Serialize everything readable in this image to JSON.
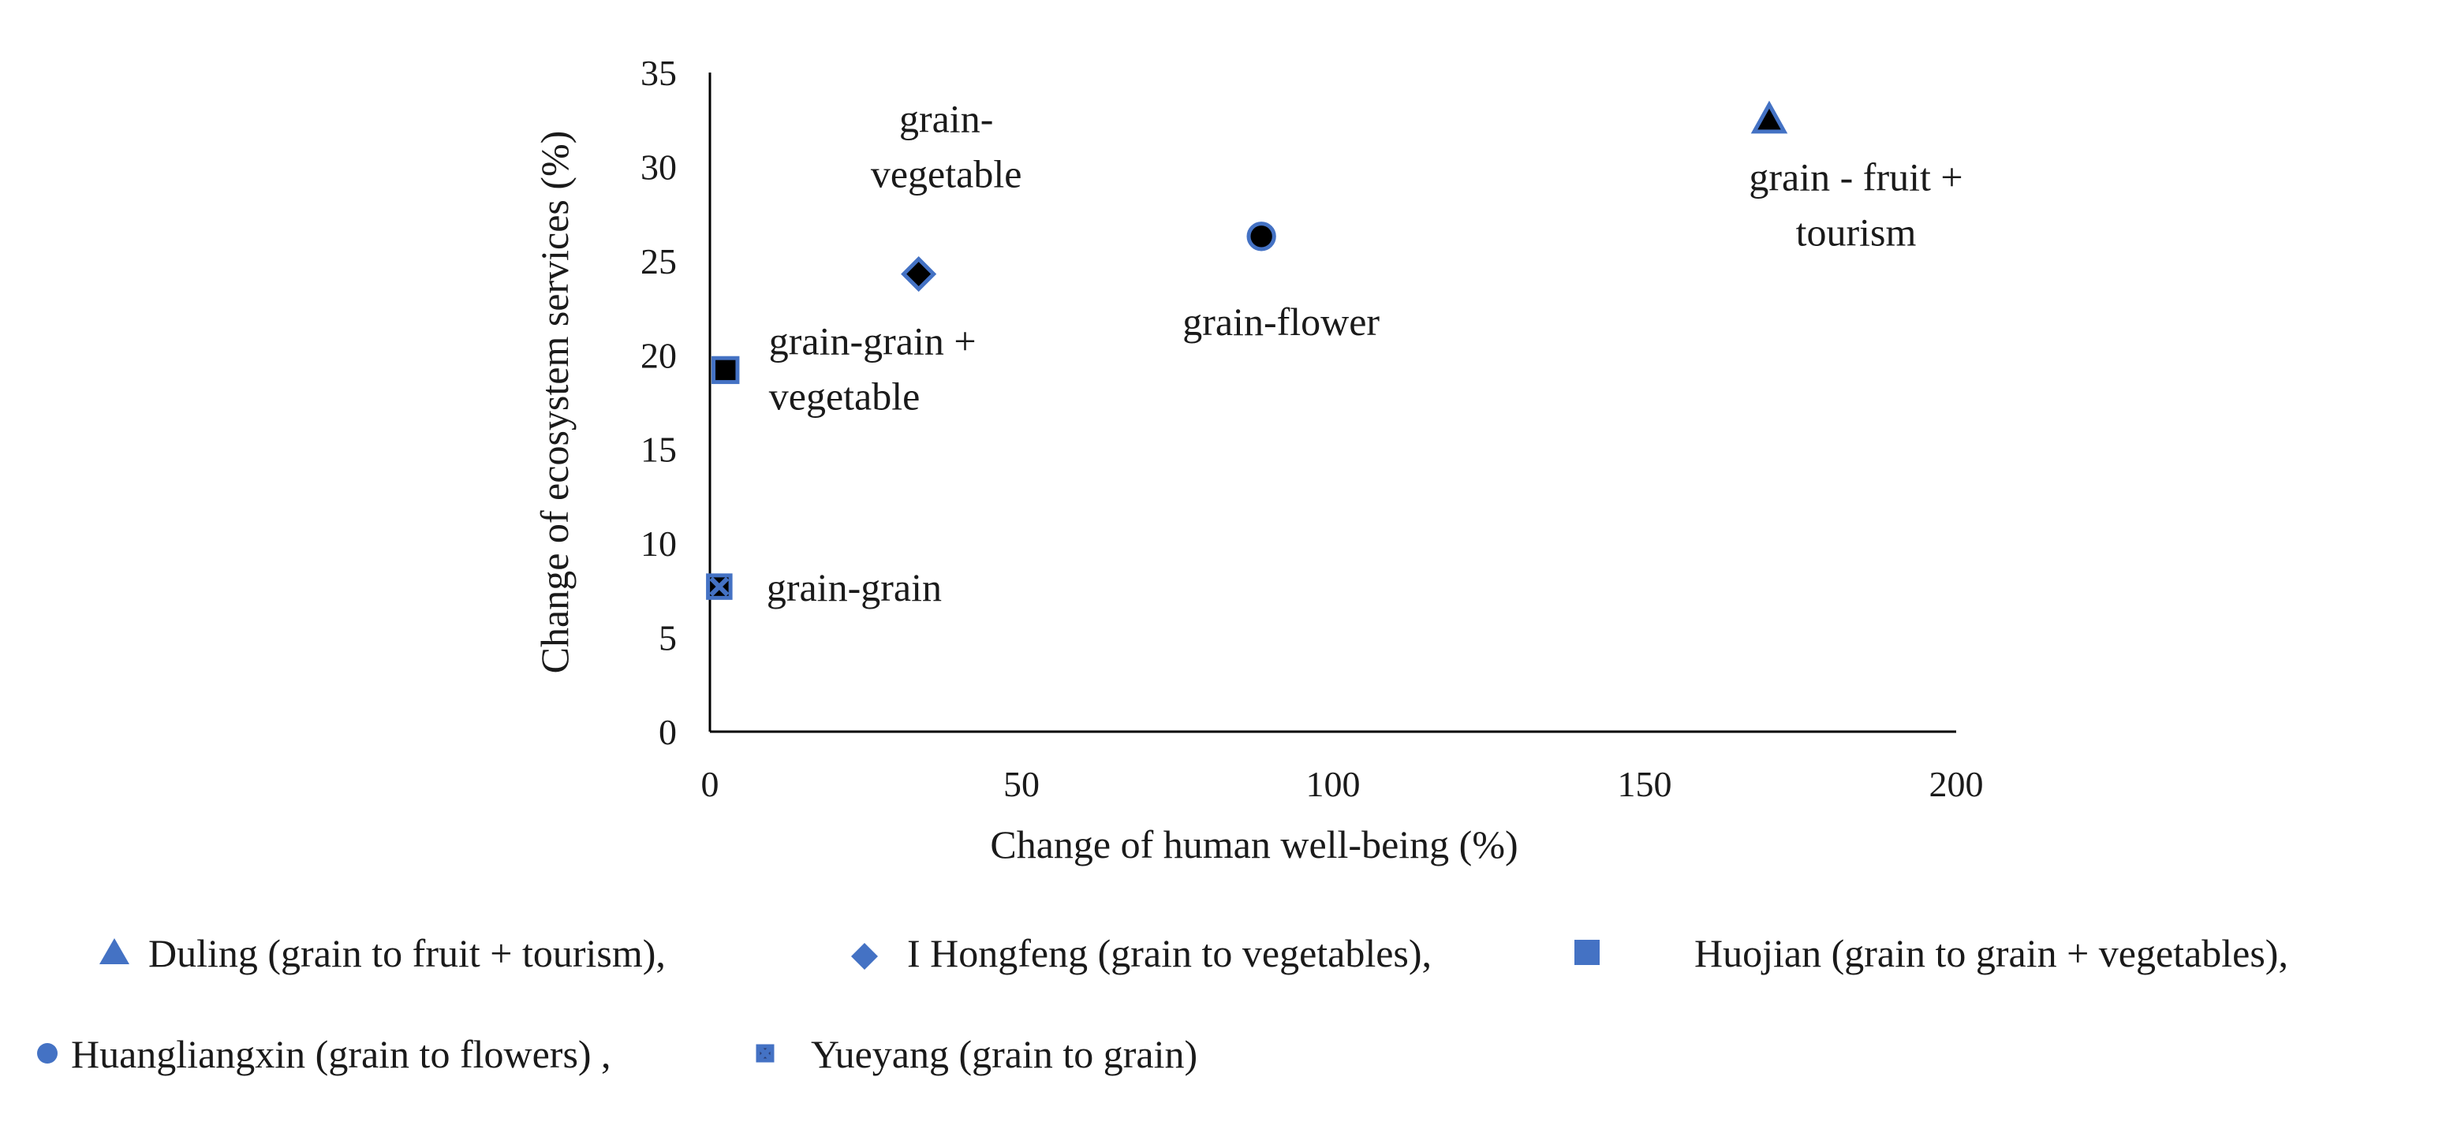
{
  "chart_data": {
    "type": "scatter",
    "title": "",
    "xlabel": "Change of human well-being (%)",
    "ylabel": "Change of ecosystem services (%)",
    "xlim": [
      0,
      200
    ],
    "ylim": [
      0,
      35
    ],
    "xticks": [
      0,
      50,
      100,
      150,
      200
    ],
    "yticks": [
      0,
      5,
      10,
      15,
      20,
      25,
      30,
      35
    ],
    "grid": false,
    "legend_position": "bottom",
    "series": [
      {
        "name": "Duling (grain to fruit + tourism),",
        "marker": "triangle",
        "x": 170,
        "y": 32.5,
        "annotation": [
          "grain - fruit +",
          "tourism"
        ]
      },
      {
        "name": "I Hongfeng (grain to vegetables),",
        "marker": "diamond",
        "x": 33.5,
        "y": 24.3,
        "annotation": [
          "grain-",
          "vegetable"
        ]
      },
      {
        "name": "Huojian (grain to grain + vegetables),",
        "marker": "square",
        "x": 2.5,
        "y": 19.2,
        "annotation": [
          "grain-grain +",
          "vegetable"
        ]
      },
      {
        "name": "Huangliangxin (grain to flowers) ,",
        "marker": "circle",
        "x": 88.5,
        "y": 26.3,
        "annotation": [
          "grain-flower"
        ]
      },
      {
        "name": "Yueyang (grain to grain)",
        "marker": "x-square",
        "x": 1.5,
        "y": 7.7,
        "annotation": [
          "grain-grain"
        ]
      }
    ]
  },
  "colors": {
    "marker_fill": "#000000",
    "marker_edge": "#4472c4",
    "legend_marker": "#4472c4",
    "axis": "#000000"
  }
}
